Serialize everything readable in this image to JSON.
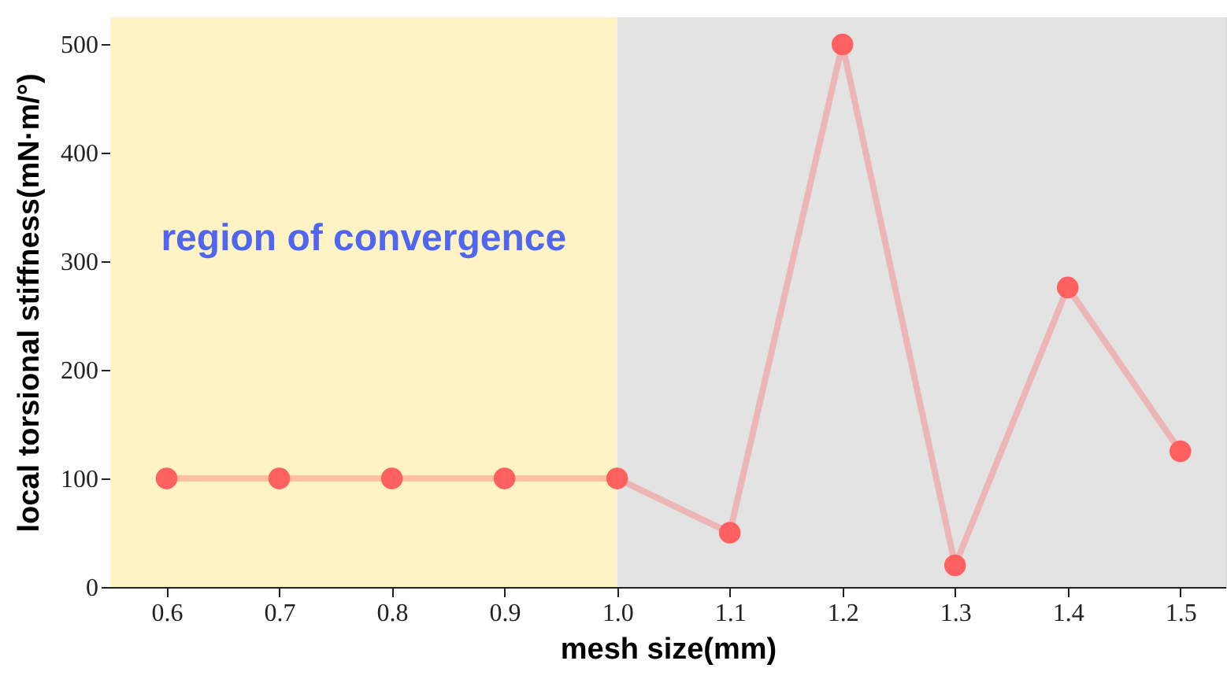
{
  "chart_data": {
    "type": "line",
    "xlabel": "mesh size(mm)",
    "ylabel": "local torsional stiffness(mN·m/°)",
    "x": [
      0.6,
      0.7,
      0.8,
      0.9,
      1.0,
      1.1,
      1.2,
      1.3,
      1.4,
      1.5
    ],
    "series": [
      {
        "color": "#ff6060",
        "values": [
          100,
          100,
          100,
          100,
          100,
          50,
          500,
          20,
          276,
          125
        ]
      }
    ],
    "xlim": [
      0.55,
      1.54
    ],
    "xticks": [
      {
        "value": 0.6,
        "label": "0.6"
      },
      {
        "value": 0.7,
        "label": "0.7"
      },
      {
        "value": 0.8,
        "label": "0.8"
      },
      {
        "value": 0.9,
        "label": "0.9"
      },
      {
        "value": 1.0,
        "label": "1.0"
      },
      {
        "value": 1.1,
        "label": "1.1"
      },
      {
        "value": 1.2,
        "label": "1.2"
      },
      {
        "value": 1.3,
        "label": "1.3"
      },
      {
        "value": 1.4,
        "label": "1.4"
      },
      {
        "value": 1.5,
        "label": "1.5"
      }
    ],
    "ylim": [
      0,
      525
    ],
    "yticks": [
      0,
      100,
      200,
      300,
      400,
      500
    ],
    "bands": [
      {
        "axis": "x",
        "from": 0.55,
        "to": 1.0,
        "label": "region of convergence",
        "color": "#fdf3c4"
      },
      {
        "axis": "x",
        "from": 1.0,
        "to": 1.54,
        "color": "#e3e3e3"
      }
    ],
    "marker": "circle",
    "line_style": "solid",
    "grid": false
  }
}
